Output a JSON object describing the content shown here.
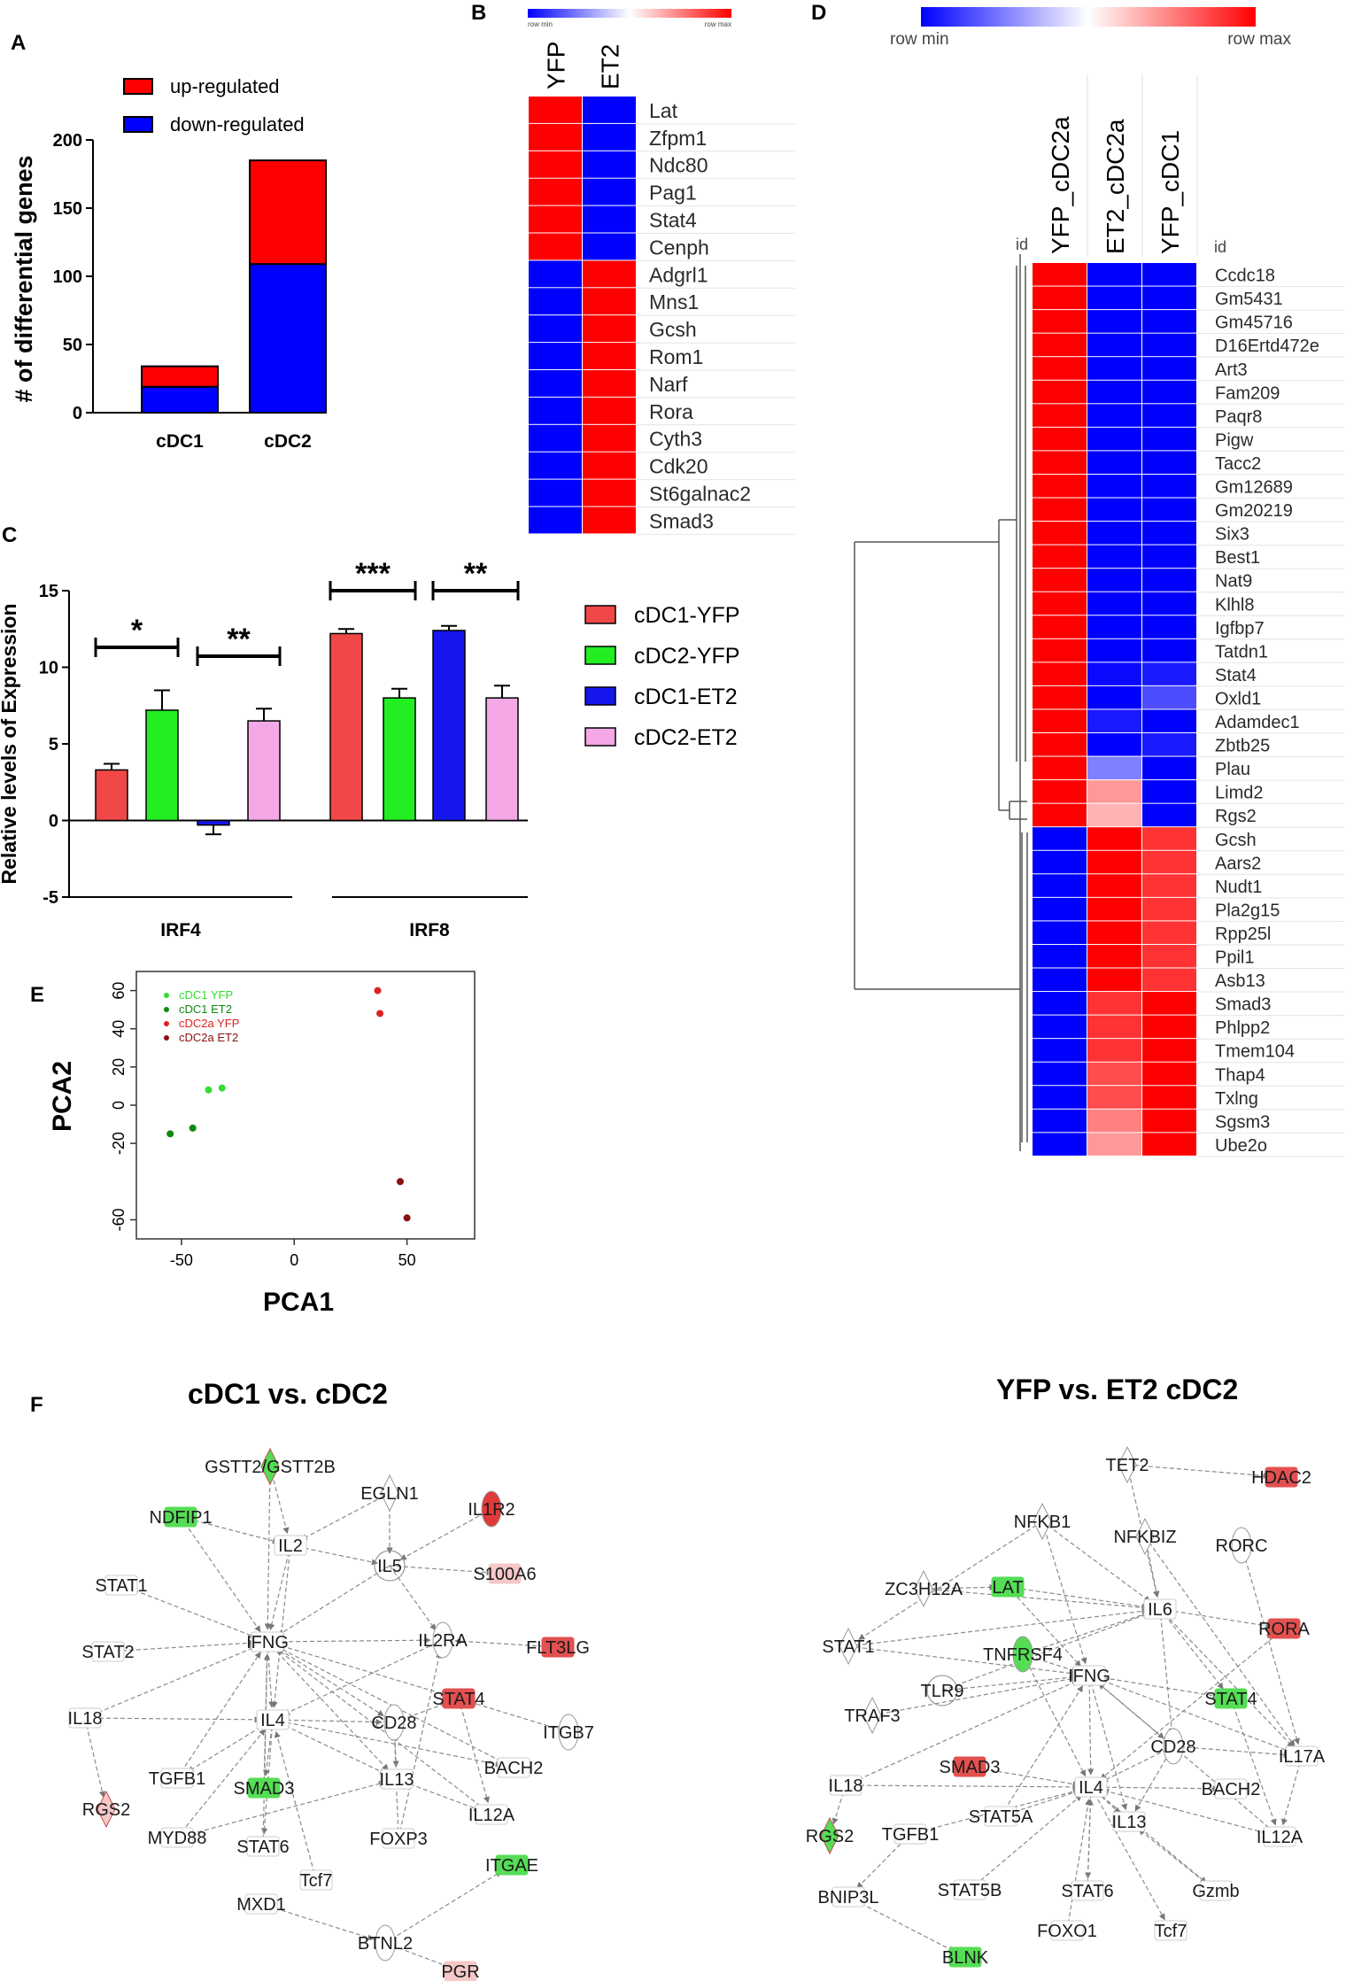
{
  "panels": {
    "A": "A",
    "B": "B",
    "C": "C",
    "D": "D",
    "E": "E",
    "F": "F"
  },
  "chart_data": [
    {
      "panel": "A",
      "type": "bar",
      "stacked": true,
      "categories": [
        "cDC1",
        "cDC2"
      ],
      "series": [
        {
          "name": "down-regulated",
          "color": "#0000ff",
          "values": [
            19,
            109
          ]
        },
        {
          "name": "up-regulated",
          "color": "#ff0000",
          "values": [
            15,
            76
          ]
        }
      ],
      "ylabel": "# of differential genes",
      "ylim": [
        0,
        200
      ],
      "yticks": [
        0,
        50,
        100,
        150,
        200
      ],
      "legend": "top-left"
    },
    {
      "panel": "B",
      "type": "heatmap",
      "scale_min_label": "row min",
      "scale_max_label": "row max",
      "columns": [
        "YFP",
        "ET2"
      ],
      "rows": [
        "Lat",
        "Zfpm1",
        "Ndc80",
        "Pag1",
        "Stat4",
        "Cenph",
        "Adgrl1",
        "Mns1",
        "Gcsh",
        "Rom1",
        "Narf",
        "Rora",
        "Cyth3",
        "Cdk20",
        "St6galnac2",
        "Smad3"
      ],
      "values": [
        [
          1,
          0
        ],
        [
          1,
          0
        ],
        [
          1,
          0
        ],
        [
          1,
          0
        ],
        [
          1,
          0
        ],
        [
          1,
          0
        ],
        [
          0,
          1
        ],
        [
          0,
          1
        ],
        [
          0,
          1
        ],
        [
          0,
          1
        ],
        [
          0,
          1
        ],
        [
          0,
          1
        ],
        [
          0,
          1
        ],
        [
          0,
          1
        ],
        [
          0,
          1
        ],
        [
          0,
          1
        ]
      ]
    },
    {
      "panel": "C",
      "type": "bar",
      "groups": [
        "IRF4",
        "IRF8"
      ],
      "series": [
        {
          "name": "cDC1-YFP",
          "color": "#f04848",
          "values": [
            3.3,
            12.2
          ],
          "errors": [
            0.4,
            0.3
          ]
        },
        {
          "name": "cDC2-YFP",
          "color": "#22ee22",
          "values": [
            7.2,
            8.0
          ],
          "errors": [
            1.3,
            0.6
          ]
        },
        {
          "name": "cDC1-ET2",
          "color": "#1515ee",
          "values": [
            -0.3,
            12.4
          ],
          "errors": [
            0.6,
            0.3
          ]
        },
        {
          "name": "cDC2-ET2",
          "color": "#f4a8e6",
          "values": [
            6.5,
            8.0
          ],
          "errors": [
            0.8,
            0.8
          ]
        }
      ],
      "ylabel": "Relative levels of Expression",
      "ylim": [
        -5,
        15
      ],
      "yticks": [
        -5,
        0,
        5,
        10,
        15
      ],
      "significance": [
        {
          "label": "*",
          "group": "IRF4",
          "from": "cDC1-YFP",
          "to": "cDC2-YFP"
        },
        {
          "label": "**",
          "group": "IRF4",
          "from": "cDC1-ET2",
          "to": "cDC2-ET2"
        },
        {
          "label": "***",
          "group": "IRF8",
          "from": "cDC1-YFP",
          "to": "cDC2-YFP"
        },
        {
          "label": "**",
          "group": "IRF8",
          "from": "cDC1-ET2",
          "to": "cDC2-ET2"
        }
      ]
    },
    {
      "panel": "D",
      "type": "heatmap",
      "scale_min_label": "row min",
      "scale_max_label": "row max",
      "id_label": "id",
      "columns": [
        "YFP_cDC2a",
        "ET2_cDC2a",
        "YFP_cDC1"
      ],
      "rows": [
        "Ccdc18",
        "Gm5431",
        "Gm45716",
        "D16Ertd472e",
        "Art3",
        "Fam209",
        "Paqr8",
        "Pigw",
        "Tacc2",
        "Gm12689",
        "Gm20219",
        "Six3",
        "Best1",
        "Nat9",
        "Klhl8",
        "Igfbp7",
        "Tatdn1",
        "Stat4",
        "Oxld1",
        "Adamdec1",
        "Zbtb25",
        "Plau",
        "Limd2",
        "Rgs2",
        "Gcsh",
        "Aars2",
        "Nudt1",
        "Pla2g15",
        "Rpp25l",
        "Ppil1",
        "Asb13",
        "Smad3",
        "Phlpp2",
        "Tmem104",
        "Thap4",
        "Txlng",
        "Sgsm3",
        "Ube2o"
      ],
      "values": [
        [
          1,
          0,
          0
        ],
        [
          1,
          0,
          0
        ],
        [
          1,
          0,
          0
        ],
        [
          1,
          0,
          0
        ],
        [
          1,
          0,
          0
        ],
        [
          1,
          0,
          0
        ],
        [
          1,
          0,
          0
        ],
        [
          1,
          0,
          0
        ],
        [
          1,
          0,
          0
        ],
        [
          1,
          0,
          0
        ],
        [
          1,
          0,
          0
        ],
        [
          1,
          0,
          0
        ],
        [
          1,
          0,
          0
        ],
        [
          1,
          0,
          0
        ],
        [
          1,
          0,
          0
        ],
        [
          1,
          0,
          0
        ],
        [
          1,
          0,
          0
        ],
        [
          1,
          0.02,
          0.05
        ],
        [
          1,
          0,
          0.15
        ],
        [
          1,
          0.05,
          0
        ],
        [
          1,
          0,
          0.05
        ],
        [
          1,
          0.25,
          0
        ],
        [
          1,
          0.7,
          0
        ],
        [
          1,
          0.65,
          0
        ],
        [
          0,
          1,
          0.9
        ],
        [
          0,
          1,
          0.9
        ],
        [
          0,
          1,
          0.9
        ],
        [
          0,
          1,
          0.9
        ],
        [
          0,
          1,
          0.9
        ],
        [
          0,
          1,
          0.9
        ],
        [
          0,
          1,
          0.9
        ],
        [
          0,
          0.9,
          1
        ],
        [
          0,
          0.9,
          1
        ],
        [
          0,
          0.9,
          1
        ],
        [
          0,
          0.85,
          1
        ],
        [
          0,
          0.85,
          1
        ],
        [
          0,
          0.75,
          1
        ],
        [
          0,
          0.7,
          1
        ]
      ]
    },
    {
      "panel": "E",
      "type": "scatter",
      "xlabel": "PCA1",
      "ylabel": "PCA2",
      "xlim": [
        -70,
        80
      ],
      "ylim": [
        -70,
        70
      ],
      "xticks": [
        -50,
        0,
        50
      ],
      "yticks": [
        -60,
        -20,
        0,
        20,
        40,
        60
      ],
      "series": [
        {
          "name": "cDC1 YFP",
          "color": "#33dd33",
          "x": [
            -38,
            -32
          ],
          "y": [
            8,
            9
          ]
        },
        {
          "name": "cDC1 ET2",
          "color": "#118811",
          "x": [
            -55,
            -45
          ],
          "y": [
            -15,
            -12
          ]
        },
        {
          "name": "cDC2a YFP",
          "color": "#dd2222",
          "x": [
            37,
            38
          ],
          "y": [
            60,
            48
          ]
        },
        {
          "name": "cDC2a ET2",
          "color": "#881111",
          "x": [
            47,
            50
          ],
          "y": [
            -40,
            -59
          ]
        }
      ]
    }
  ],
  "networks": [
    {
      "title": "cDC1 vs. cDC2",
      "nodes": [
        {
          "id": "GSTT2/GSTT2B",
          "color": "#55dd55"
        },
        {
          "id": "EGLN1",
          "color": "#ffffff"
        },
        {
          "id": "IL1R2",
          "color": "#e23a3a"
        },
        {
          "id": "NDFIP1",
          "color": "#55dd55"
        },
        {
          "id": "IL2",
          "color": "#ffffff"
        },
        {
          "id": "IL5",
          "color": "#ffffff"
        },
        {
          "id": "S100A6",
          "color": "#f6c8c8"
        },
        {
          "id": "STAT1",
          "color": "#ffffff"
        },
        {
          "id": "IFNG",
          "color": "#ffffff"
        },
        {
          "id": "IL2RA",
          "color": "#ffffff"
        },
        {
          "id": "FLT3LG",
          "color": "#e35050"
        },
        {
          "id": "STAT2",
          "color": "#ffffff"
        },
        {
          "id": "STAT4",
          "color": "#e35050"
        },
        {
          "id": "IL18",
          "color": "#ffffff"
        },
        {
          "id": "IL4",
          "color": "#ffffff"
        },
        {
          "id": "CD28",
          "color": "#ffffff"
        },
        {
          "id": "ITGB7",
          "color": "#ffffff"
        },
        {
          "id": "TGFB1",
          "color": "#ffffff"
        },
        {
          "id": "SMAD3",
          "color": "#55dd55"
        },
        {
          "id": "IL13",
          "color": "#ffffff"
        },
        {
          "id": "BACH2",
          "color": "#ffffff"
        },
        {
          "id": "RGS2",
          "color": "#f6c8c8"
        },
        {
          "id": "MYD88",
          "color": "#ffffff"
        },
        {
          "id": "IL12A",
          "color": "#ffffff"
        },
        {
          "id": "STAT6",
          "color": "#ffffff"
        },
        {
          "id": "FOXP3",
          "color": "#ffffff"
        },
        {
          "id": "Tcf7",
          "color": "#ffffff"
        },
        {
          "id": "ITGAE",
          "color": "#55dd55"
        },
        {
          "id": "MXD1",
          "color": "#ffffff"
        },
        {
          "id": "BTNL2",
          "color": "#ffffff"
        },
        {
          "id": "PGR",
          "color": "#f6c8c8"
        }
      ]
    },
    {
      "title": "YFP vs. ET2 cDC2",
      "nodes": [
        {
          "id": "TET2",
          "color": "#ffffff"
        },
        {
          "id": "HDAC2",
          "color": "#e35050"
        },
        {
          "id": "NFKB1",
          "color": "#ffffff"
        },
        {
          "id": "NFKBIZ",
          "color": "#ffffff"
        },
        {
          "id": "RORC",
          "color": "#ffffff"
        },
        {
          "id": "ZC3H12A",
          "color": "#ffffff"
        },
        {
          "id": "LAT",
          "color": "#55dd55"
        },
        {
          "id": "IL6",
          "color": "#ffffff"
        },
        {
          "id": "RORA",
          "color": "#e35050"
        },
        {
          "id": "STAT1",
          "color": "#ffffff"
        },
        {
          "id": "TNFRSF4",
          "color": "#55dd55"
        },
        {
          "id": "TLR9",
          "color": "#ffffff"
        },
        {
          "id": "IFNG",
          "color": "#ffffff"
        },
        {
          "id": "STAT4",
          "color": "#55dd55"
        },
        {
          "id": "TRAF3",
          "color": "#ffffff"
        },
        {
          "id": "CD28",
          "color": "#ffffff"
        },
        {
          "id": "IL17A",
          "color": "#ffffff"
        },
        {
          "id": "SMAD3",
          "color": "#e35050"
        },
        {
          "id": "IL18",
          "color": "#ffffff"
        },
        {
          "id": "IL4",
          "color": "#ffffff"
        },
        {
          "id": "BACH2",
          "color": "#ffffff"
        },
        {
          "id": "RGS2",
          "color": "#55dd55"
        },
        {
          "id": "TGFB1",
          "color": "#ffffff"
        },
        {
          "id": "STAT5A",
          "color": "#ffffff"
        },
        {
          "id": "IL13",
          "color": "#ffffff"
        },
        {
          "id": "IL12A",
          "color": "#ffffff"
        },
        {
          "id": "BNIP3L",
          "color": "#ffffff"
        },
        {
          "id": "STAT5B",
          "color": "#ffffff"
        },
        {
          "id": "STAT6",
          "color": "#ffffff"
        },
        {
          "id": "Gzmb",
          "color": "#ffffff"
        },
        {
          "id": "FOXO1",
          "color": "#ffffff"
        },
        {
          "id": "Tcf7",
          "color": "#ffffff"
        },
        {
          "id": "BLNK",
          "color": "#55dd55"
        }
      ]
    }
  ]
}
